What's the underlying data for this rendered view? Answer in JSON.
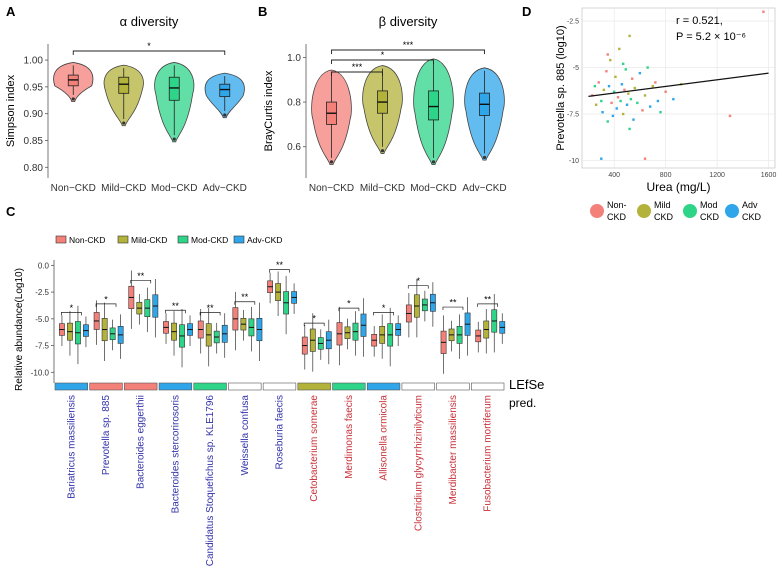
{
  "colors": {
    "non": "#F4807A",
    "mild": "#B3B23A",
    "mod": "#2ED488",
    "adv": "#2FA6EA",
    "blue_taxa": "#3333AA",
    "red_taxa": "#C8323A"
  },
  "groups": [
    "Non−CKD",
    "Mild−CKD",
    "Mod−CKD",
    "Adv−CKD"
  ],
  "chart_data": [
    {
      "panel": "A",
      "type": "violin",
      "title": "α diversity",
      "ylabel": "Simpson index",
      "ylim": [
        0.78,
        1.03
      ],
      "yticks": [
        "0.80",
        "0.85",
        "0.90",
        "0.95",
        "1.00"
      ],
      "categories": [
        "Non−CKD",
        "Mild−CKD",
        "Mod−CKD",
        "Adv−CKD"
      ],
      "box": [
        {
          "q1": 0.952,
          "median": 0.963,
          "q3": 0.972,
          "low": 0.935,
          "high": 0.99
        },
        {
          "q1": 0.938,
          "median": 0.955,
          "q3": 0.968,
          "low": 0.89,
          "high": 0.985
        },
        {
          "q1": 0.925,
          "median": 0.948,
          "q3": 0.968,
          "low": 0.86,
          "high": 0.99
        },
        {
          "q1": 0.932,
          "median": 0.945,
          "q3": 0.955,
          "low": 0.905,
          "high": 0.97
        }
      ],
      "significance": [
        {
          "from": "Non−CKD",
          "to": "Adv−CKD",
          "label": "*"
        }
      ]
    },
    {
      "panel": "B",
      "type": "violin",
      "title": "β diversity",
      "ylabel": "BrayCurtis index",
      "ylim": [
        0.46,
        1.06
      ],
      "yticks": [
        "0.6",
        "0.8",
        "1.0"
      ],
      "categories": [
        "Non−CKD",
        "Mild−CKD",
        "Mod−CKD",
        "Adv−CKD"
      ],
      "box": [
        {
          "q1": 0.7,
          "median": 0.75,
          "q3": 0.8,
          "low": 0.55,
          "high": 0.93
        },
        {
          "q1": 0.75,
          "median": 0.8,
          "q3": 0.85,
          "low": 0.6,
          "high": 0.95
        },
        {
          "q1": 0.72,
          "median": 0.78,
          "q3": 0.85,
          "low": 0.55,
          "high": 0.98
        },
        {
          "q1": 0.74,
          "median": 0.79,
          "q3": 0.84,
          "low": 0.57,
          "high": 0.94
        }
      ],
      "significance": [
        {
          "from": "Non−CKD",
          "to": "Mild−CKD",
          "label": "***"
        },
        {
          "from": "Non−CKD",
          "to": "Mod−CKD",
          "label": "*"
        },
        {
          "from": "Non−CKD",
          "to": "Adv−CKD",
          "label": "***"
        }
      ]
    },
    {
      "panel": "C",
      "type": "boxplot",
      "ylabel": "Relative abundance(Log10)",
      "ylim": [
        -11,
        0.5
      ],
      "yticks": [
        "0.0",
        "-2.5",
        "-5.0",
        "-7.5",
        "-10.0"
      ],
      "legend": [
        "Non-CKD",
        "Mild-CKD",
        "Mod-CKD",
        "Adv-CKD"
      ],
      "lefse_label": "LEfSe",
      "pred_label": "pred.",
      "taxa": [
        {
          "name": "Bariatricus massiliensis",
          "group": "blue",
          "pred": "adv",
          "sig": "*",
          "medians": [
            -6.0,
            -6.2,
            -6.3,
            -6.1
          ]
        },
        {
          "name": "Prevotella sp. 885",
          "group": "blue",
          "pred": "non",
          "sig": "*",
          "medians": [
            -5.2,
            -6.0,
            -6.4,
            -6.5
          ]
        },
        {
          "name": "Bacteroides eggerthii",
          "group": "blue",
          "pred": "non",
          "sig": "**",
          "medians": [
            -3.0,
            -4.0,
            -4.0,
            -3.8
          ]
        },
        {
          "name": "Bacteroides stercorirosoris",
          "group": "blue",
          "pred": "adv",
          "sig": "**",
          "medians": [
            -5.8,
            -6.2,
            -6.6,
            -6.0
          ]
        },
        {
          "name": "Candidatus Stoquefichus sp. KLE1796",
          "group": "blue",
          "pred": "mod",
          "sig": "**",
          "medians": [
            -6.0,
            -6.5,
            -6.7,
            -6.4
          ]
        },
        {
          "name": "Weissella confusa",
          "group": "blue",
          "pred": "none",
          "sig": "**",
          "medians": [
            -5.0,
            -5.5,
            -5.8,
            -6.0
          ]
        },
        {
          "name": "Roseburia faecis",
          "group": "blue",
          "pred": "none",
          "sig": "**",
          "medians": [
            -2.0,
            -2.5,
            -3.5,
            -3.0
          ]
        },
        {
          "name": "Cetobacterium somerae",
          "group": "red",
          "pred": "mild",
          "sig": "*",
          "medians": [
            -7.5,
            -7.0,
            -7.3,
            -7.0
          ]
        },
        {
          "name": "Merdimonas faecis",
          "group": "red",
          "pred": "mod",
          "sig": "*",
          "medians": [
            -6.4,
            -6.3,
            -6.2,
            -5.6
          ]
        },
        {
          "name": "Allisonella ormicola",
          "group": "red",
          "pred": "adv",
          "sig": "*",
          "medians": [
            -7.0,
            -6.5,
            -6.5,
            -6.0
          ]
        },
        {
          "name": "Clostridium glycyrrhizinilyticum",
          "group": "red",
          "pred": "none",
          "sig": "*",
          "medians": [
            -4.5,
            -3.8,
            -3.7,
            -3.5
          ]
        },
        {
          "name": "Merdibacter massiliensis",
          "group": "red",
          "pred": "none",
          "sig": "**",
          "medians": [
            -7.2,
            -6.5,
            -6.5,
            -5.5
          ]
        },
        {
          "name": "Fusobacterium mortiferum",
          "group": "red",
          "pred": "none",
          "sig": "**",
          "medians": [
            -6.6,
            -6.0,
            -5.2,
            -5.8
          ]
        }
      ]
    },
    {
      "panel": "D",
      "type": "scatter",
      "xlabel": "Urea (mg/L)",
      "ylabel": "Prevotella sp. 885 (log10)",
      "xlim": [
        150,
        1650
      ],
      "ylim": [
        -10.4,
        -1.8
      ],
      "xticks": [
        "400",
        "800",
        "1200",
        "1600"
      ],
      "yticks": [
        "-2.5",
        "-5",
        "-7.5",
        "-10"
      ],
      "annotation_r": "r = 0.521,",
      "annotation_p": "P = 5.2 × 10⁻⁶",
      "fit": {
        "x": [
          200,
          1600
        ],
        "y": [
          -6.55,
          -5.3
        ]
      },
      "legend": [
        {
          "key": "non",
          "line1": "Non-",
          "line2": "CKD"
        },
        {
          "key": "mild",
          "line1": "Mild",
          "line2": "CKD"
        },
        {
          "key": "mod",
          "line1": "Mod",
          "line2": "CKD"
        },
        {
          "key": "adv",
          "line1": "Adv",
          "line2": "CKD"
        }
      ],
      "points": [
        {
          "x": 230,
          "y": -6.5,
          "g": "non"
        },
        {
          "x": 260,
          "y": -7.0,
          "g": "mild"
        },
        {
          "x": 280,
          "y": -5.8,
          "g": "non"
        },
        {
          "x": 300,
          "y": -6.8,
          "g": "mod"
        },
        {
          "x": 310,
          "y": -7.4,
          "g": "adv"
        },
        {
          "x": 320,
          "y": -6.2,
          "g": "mild"
        },
        {
          "x": 340,
          "y": -5.2,
          "g": "non"
        },
        {
          "x": 350,
          "y": -7.9,
          "g": "mod"
        },
        {
          "x": 360,
          "y": -6.0,
          "g": "adv"
        },
        {
          "x": 370,
          "y": -4.6,
          "g": "mild"
        },
        {
          "x": 380,
          "y": -6.9,
          "g": "non"
        },
        {
          "x": 390,
          "y": -7.6,
          "g": "adv"
        },
        {
          "x": 400,
          "y": -6.3,
          "g": "mod"
        },
        {
          "x": 410,
          "y": -5.5,
          "g": "mild"
        },
        {
          "x": 420,
          "y": -7.2,
          "g": "adv"
        },
        {
          "x": 430,
          "y": -6.6,
          "g": "non"
        },
        {
          "x": 440,
          "y": -4.0,
          "g": "mild"
        },
        {
          "x": 450,
          "y": -6.8,
          "g": "mod"
        },
        {
          "x": 460,
          "y": -5.9,
          "g": "adv"
        },
        {
          "x": 470,
          "y": -7.5,
          "g": "mild"
        },
        {
          "x": 480,
          "y": -6.2,
          "g": "non"
        },
        {
          "x": 490,
          "y": -5.1,
          "g": "mod"
        },
        {
          "x": 500,
          "y": -7.0,
          "g": "adv"
        },
        {
          "x": 510,
          "y": -6.4,
          "g": "mild"
        },
        {
          "x": 520,
          "y": -3.3,
          "g": "mild"
        },
        {
          "x": 530,
          "y": -6.7,
          "g": "mod"
        },
        {
          "x": 540,
          "y": -5.6,
          "g": "non"
        },
        {
          "x": 550,
          "y": -7.8,
          "g": "adv"
        },
        {
          "x": 560,
          "y": -6.1,
          "g": "mild"
        },
        {
          "x": 580,
          "y": -6.9,
          "g": "mod"
        },
        {
          "x": 600,
          "y": -5.3,
          "g": "adv"
        },
        {
          "x": 620,
          "y": -7.3,
          "g": "non"
        },
        {
          "x": 640,
          "y": -6.5,
          "g": "mild"
        },
        {
          "x": 660,
          "y": -5.0,
          "g": "mod"
        },
        {
          "x": 680,
          "y": -7.1,
          "g": "adv"
        },
        {
          "x": 700,
          "y": -6.0,
          "g": "mild"
        },
        {
          "x": 720,
          "y": -5.8,
          "g": "non"
        },
        {
          "x": 740,
          "y": -6.8,
          "g": "adv"
        },
        {
          "x": 760,
          "y": -7.4,
          "g": "mod"
        },
        {
          "x": 300,
          "y": -9.9,
          "g": "adv"
        },
        {
          "x": 640,
          "y": -9.9,
          "g": "non"
        },
        {
          "x": 470,
          "y": -4.8,
          "g": "mod"
        },
        {
          "x": 520,
          "y": -8.3,
          "g": "mod"
        },
        {
          "x": 800,
          "y": -6.3,
          "g": "non"
        },
        {
          "x": 860,
          "y": -6.7,
          "g": "adv"
        },
        {
          "x": 920,
          "y": -5.9,
          "g": "mild"
        },
        {
          "x": 1300,
          "y": -7.6,
          "g": "non"
        },
        {
          "x": 1560,
          "y": -2.0,
          "g": "non"
        },
        {
          "x": 350,
          "y": -4.3,
          "g": "non"
        },
        {
          "x": 250,
          "y": -6.0,
          "g": "mod"
        }
      ]
    }
  ],
  "panel_labels": {
    "A": "A",
    "B": "B",
    "C": "C",
    "D": "D"
  }
}
